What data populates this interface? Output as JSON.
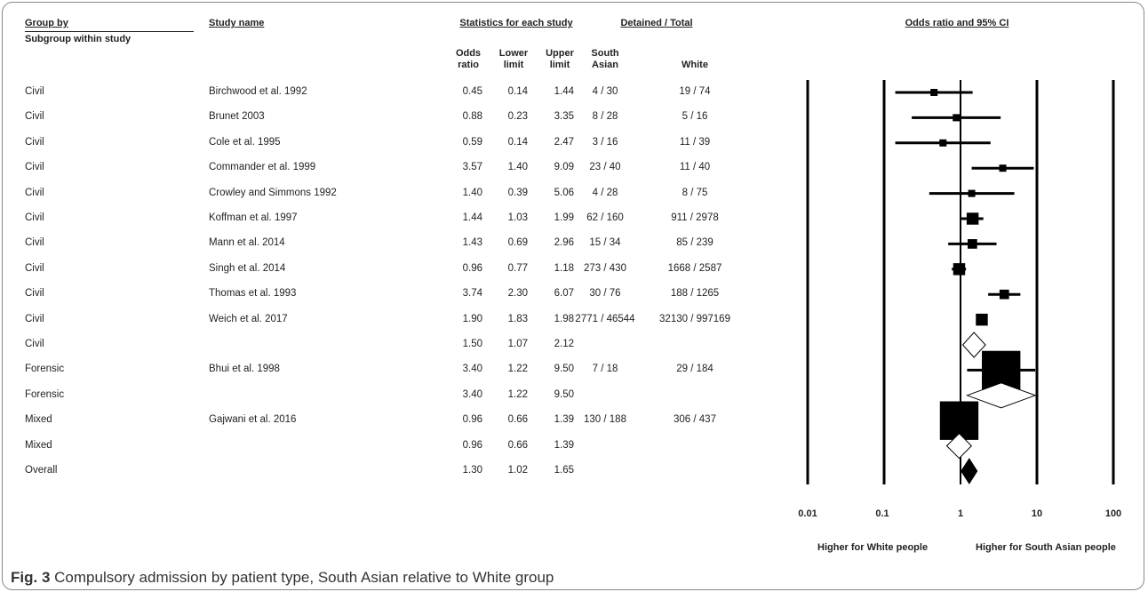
{
  "headers": {
    "group_by": "Group by",
    "subgroup": "Subgroup within study",
    "study_name": "Study name",
    "stats": "Statistics for each study",
    "detained": "Detained / Total",
    "plot": "Odds ratio and 95% CI",
    "odds_ratio": [
      "Odds",
      "ratio"
    ],
    "lower_limit": [
      "Lower",
      "limit"
    ],
    "upper_limit": [
      "Upper",
      "limit"
    ],
    "south_asian": [
      "South",
      "Asian"
    ],
    "white": "White"
  },
  "rows": [
    {
      "group": "Civil",
      "study": "Birchwood et al. 1992",
      "or": "0.45",
      "lower": "0.14",
      "upper": "1.44",
      "sa": "4 / 30",
      "white": "19 / 74"
    },
    {
      "group": "Civil",
      "study": "Brunet 2003",
      "or": "0.88",
      "lower": "0.23",
      "upper": "3.35",
      "sa": "8 / 28",
      "white": "5 / 16"
    },
    {
      "group": "Civil",
      "study": "Cole et al. 1995",
      "or": "0.59",
      "lower": "0.14",
      "upper": "2.47",
      "sa": "3 / 16",
      "white": "11 / 39"
    },
    {
      "group": "Civil",
      "study": "Commander et al. 1999",
      "or": "3.57",
      "lower": "1.40",
      "upper": "9.09",
      "sa": "23 / 40",
      "white": "11 / 40"
    },
    {
      "group": "Civil",
      "study": "Crowley and Simmons 1992",
      "or": "1.40",
      "lower": "0.39",
      "upper": "5.06",
      "sa": "4 / 28",
      "white": "8 / 75"
    },
    {
      "group": "Civil",
      "study": "Koffman et al. 1997",
      "or": "1.44",
      "lower": "1.03",
      "upper": "1.99",
      "sa": "62 / 160",
      "white": "911 / 2978"
    },
    {
      "group": "Civil",
      "study": "Mann et al. 2014",
      "or": "1.43",
      "lower": "0.69",
      "upper": "2.96",
      "sa": "15 / 34",
      "white": "85 / 239"
    },
    {
      "group": "Civil",
      "study": "Singh et al. 2014",
      "or": "0.96",
      "lower": "0.77",
      "upper": "1.18",
      "sa": "273 / 430",
      "white": "1668 / 2587"
    },
    {
      "group": "Civil",
      "study": "Thomas et al. 1993",
      "or": "3.74",
      "lower": "2.30",
      "upper": "6.07",
      "sa": "30 / 76",
      "white": "188 / 1265"
    },
    {
      "group": "Civil",
      "study": "Weich et al. 2017",
      "or": "1.90",
      "lower": "1.83",
      "upper": "1.98",
      "sa": "2771 / 46544",
      "white": "32130 / 997169"
    },
    {
      "group": "Civil",
      "study": "",
      "or": "1.50",
      "lower": "1.07",
      "upper": "2.12",
      "sa": "",
      "white": ""
    },
    {
      "group": "Forensic",
      "study": "Bhui et al. 1998",
      "or": "3.40",
      "lower": "1.22",
      "upper": "9.50",
      "sa": "7 / 18",
      "white": "29 / 184"
    },
    {
      "group": "Forensic",
      "study": "",
      "or": "3.40",
      "lower": "1.22",
      "upper": "9.50",
      "sa": "",
      "white": ""
    },
    {
      "group": "Mixed",
      "study": "Gajwani et al. 2016",
      "or": "0.96",
      "lower": "0.66",
      "upper": "1.39",
      "sa": "130 / 188",
      "white": "306 / 437"
    },
    {
      "group": "Mixed",
      "study": "",
      "or": "0.96",
      "lower": "0.66",
      "upper": "1.39",
      "sa": "",
      "white": ""
    },
    {
      "group": "Overall",
      "study": "",
      "or": "1.30",
      "lower": "1.02",
      "upper": "1.65",
      "sa": "",
      "white": ""
    }
  ],
  "axis_ticks": [
    "0.01",
    "0.1",
    "1",
    "10",
    "100"
  ],
  "direction_labels": {
    "left": "Higher for White people",
    "right": "Higher for South Asian people"
  },
  "caption": {
    "label": "Fig. 3",
    "text": "Compulsory admission by patient type, South Asian relative to White group"
  },
  "chart_data": {
    "type": "forest",
    "scale": "log",
    "xlim": [
      0.01,
      100
    ],
    "reference_line": 1,
    "xticks": [
      0.01,
      0.1,
      1,
      10,
      100
    ],
    "marker_color": "#000000",
    "points": [
      {
        "label": "Birchwood et al. 1992",
        "kind": "study",
        "or": 0.45,
        "lower": 0.14,
        "upper": 1.44,
        "weight": 1
      },
      {
        "label": "Brunet 2003",
        "kind": "study",
        "or": 0.88,
        "lower": 0.23,
        "upper": 3.35,
        "weight": 1
      },
      {
        "label": "Cole et al. 1995",
        "kind": "study",
        "or": 0.59,
        "lower": 0.14,
        "upper": 2.47,
        "weight": 1
      },
      {
        "label": "Commander et al. 1999",
        "kind": "study",
        "or": 3.57,
        "lower": 1.4,
        "upper": 9.09,
        "weight": 1
      },
      {
        "label": "Crowley and Simmons 1992",
        "kind": "study",
        "or": 1.4,
        "lower": 0.39,
        "upper": 5.06,
        "weight": 1
      },
      {
        "label": "Koffman et al. 1997",
        "kind": "study",
        "or": 1.44,
        "lower": 1.03,
        "upper": 1.99,
        "weight": 1.4
      },
      {
        "label": "Mann et al. 2014",
        "kind": "study",
        "or": 1.43,
        "lower": 0.69,
        "upper": 2.96,
        "weight": 1.2
      },
      {
        "label": "Singh et al. 2014",
        "kind": "study",
        "or": 0.96,
        "lower": 0.77,
        "upper": 1.18,
        "weight": 1.4
      },
      {
        "label": "Thomas et al. 1993",
        "kind": "study",
        "or": 3.74,
        "lower": 2.3,
        "upper": 6.07,
        "weight": 1.2
      },
      {
        "label": "Weich et al. 2017",
        "kind": "study",
        "or": 1.9,
        "lower": 1.83,
        "upper": 1.98,
        "weight": 1.4
      },
      {
        "label": "Civil",
        "kind": "subtotal",
        "or": 1.5,
        "lower": 1.07,
        "upper": 2.12
      },
      {
        "label": "Bhui et al. 1998",
        "kind": "study",
        "or": 3.4,
        "lower": 1.22,
        "upper": 9.5,
        "weight": 3.6
      },
      {
        "label": "Forensic",
        "kind": "subtotal",
        "or": 3.4,
        "lower": 1.22,
        "upper": 9.5
      },
      {
        "label": "Gajwani et al. 2016",
        "kind": "study",
        "or": 0.96,
        "lower": 0.66,
        "upper": 1.39,
        "weight": 3.6
      },
      {
        "label": "Mixed",
        "kind": "subtotal",
        "or": 0.96,
        "lower": 0.66,
        "upper": 1.39
      },
      {
        "label": "Overall",
        "kind": "overall",
        "or": 1.3,
        "lower": 1.02,
        "upper": 1.65
      }
    ]
  }
}
